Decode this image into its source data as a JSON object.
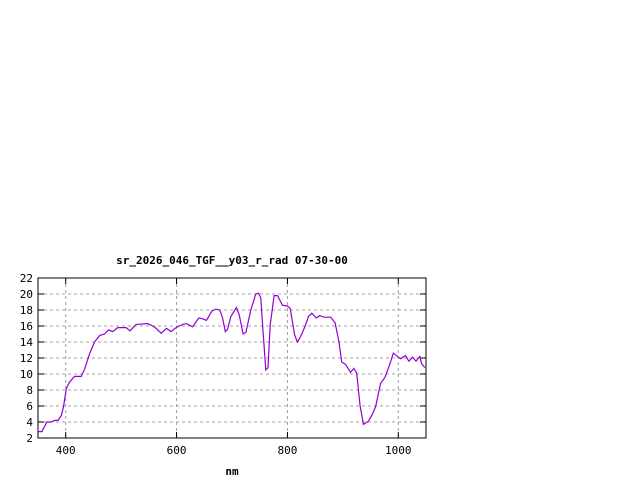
{
  "chart_data": {
    "type": "line",
    "title": "sr_2026_046_TGF__y03_r_rad 07-30-00",
    "xlabel": "nm",
    "ylabel": "",
    "xlim": [
      350,
      1050
    ],
    "ylim": [
      2,
      22
    ],
    "xticks": [
      400,
      600,
      800,
      1000
    ],
    "yticks": [
      2,
      4,
      6,
      8,
      10,
      12,
      14,
      16,
      18,
      20,
      22
    ],
    "grid": true,
    "line_color": "#9400d3",
    "series": [
      {
        "x": [
          350,
          357,
          366,
          374,
          380,
          386,
          392,
          396,
          401,
          407,
          416,
          428,
          434,
          443,
          452,
          461,
          470,
          477,
          485,
          494,
          509,
          516,
          527,
          548,
          560,
          572,
          582,
          590,
          599,
          611,
          618,
          629,
          640,
          647,
          654,
          664,
          671,
          678,
          683,
          688,
          692,
          698,
          708,
          713,
          720,
          725,
          734,
          743,
          748,
          752,
          756,
          761,
          765,
          769,
          776,
          782,
          791,
          800,
          805,
          813,
          818,
          824,
          832,
          838,
          844,
          852,
          858,
          866,
          878,
          886,
          893,
          898,
          905,
          914,
          920,
          925,
          931,
          937,
          946,
          952,
          959,
          968,
          976,
          985,
          991,
          1004,
          1013,
          1019,
          1026,
          1032,
          1039,
          1042,
          1048
        ],
        "y": [
          2.8,
          2.8,
          4.0,
          4.0,
          4.2,
          4.2,
          4.8,
          5.9,
          8.2,
          9.0,
          9.7,
          9.7,
          10.6,
          12.5,
          14.0,
          14.8,
          15.0,
          15.5,
          15.3,
          15.8,
          15.8,
          15.4,
          16.2,
          16.3,
          15.9,
          15.1,
          15.7,
          15.3,
          15.8,
          16.2,
          16.3,
          15.9,
          17.0,
          16.9,
          16.7,
          17.9,
          18.1,
          18.0,
          17.0,
          15.3,
          15.6,
          17.2,
          18.3,
          17.4,
          15.0,
          15.2,
          18.0,
          20.0,
          20.1,
          19.5,
          15.4,
          10.5,
          10.8,
          16.1,
          19.8,
          19.8,
          18.6,
          18.5,
          18.2,
          14.9,
          14.0,
          14.7,
          16.0,
          17.2,
          17.6,
          17.0,
          17.3,
          17.1,
          17.1,
          16.4,
          14.0,
          11.5,
          11.2,
          10.2,
          10.7,
          10.1,
          6.1,
          3.7,
          4.1,
          4.8,
          5.9,
          8.8,
          9.6,
          11.3,
          12.6,
          11.9,
          12.3,
          11.6,
          12.1,
          11.6,
          12.2,
          11.3,
          10.8
        ]
      }
    ]
  }
}
